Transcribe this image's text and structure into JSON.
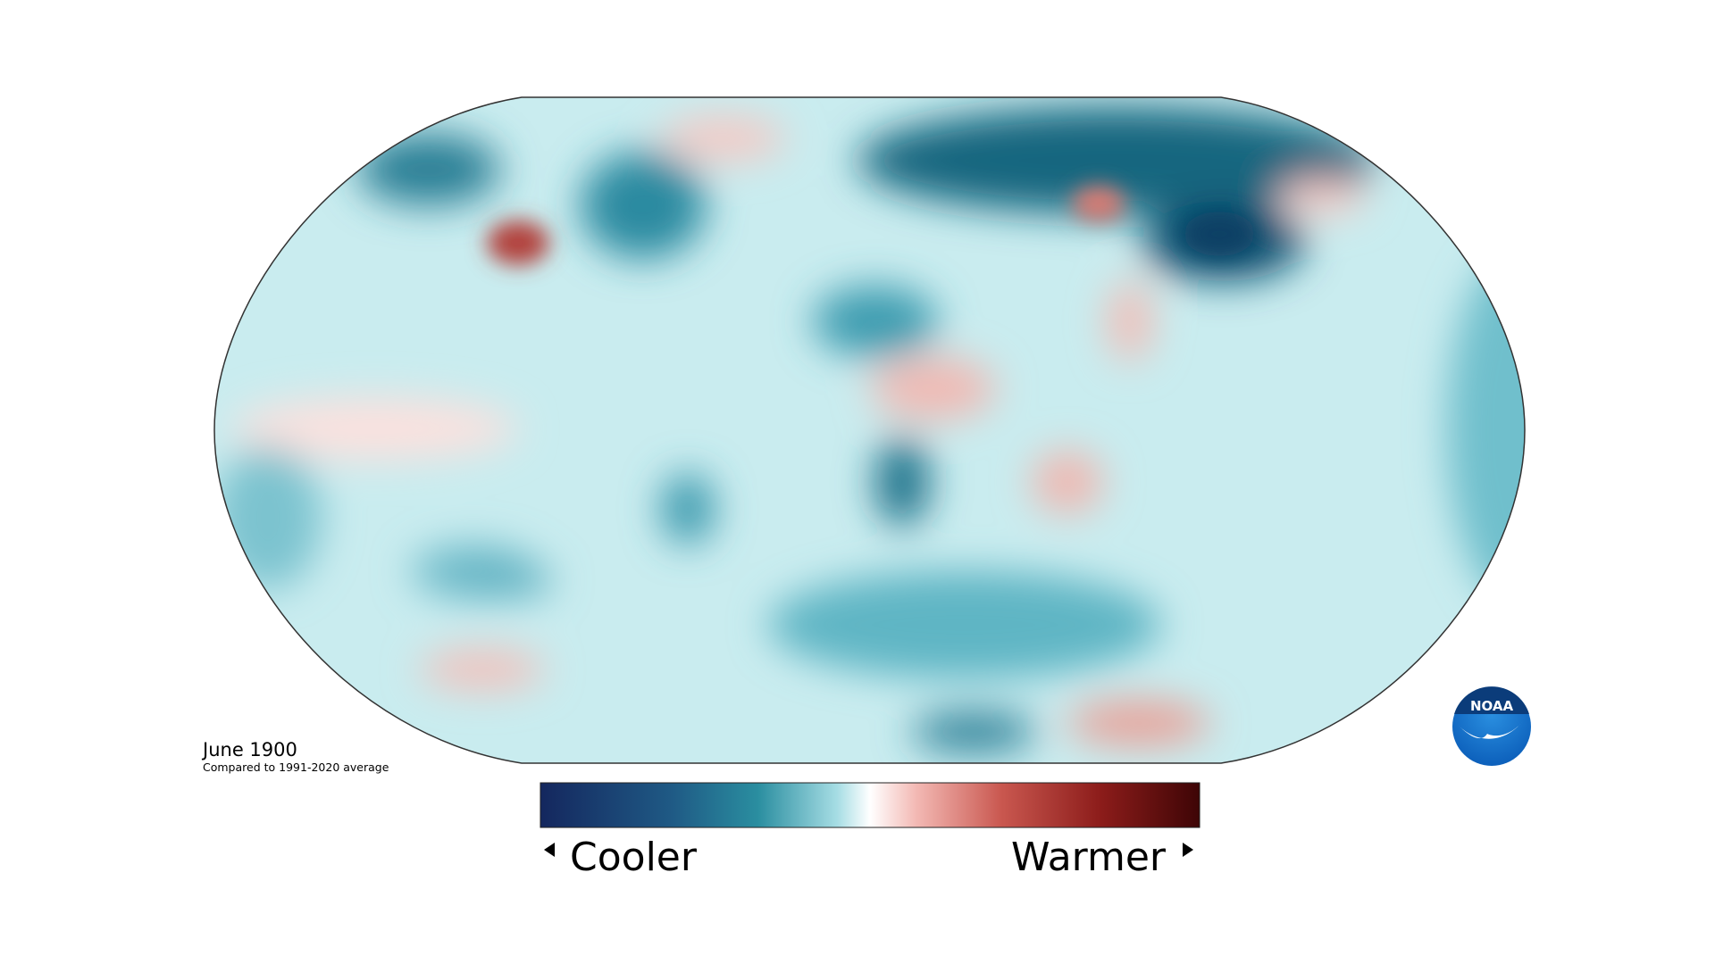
{
  "title": "June 1900",
  "subtitle": "Compared to 1991-2020 average",
  "legend": {
    "low_label": "Cooler",
    "high_label": "Warmer"
  },
  "logo": {
    "text": "NOAA"
  }
}
